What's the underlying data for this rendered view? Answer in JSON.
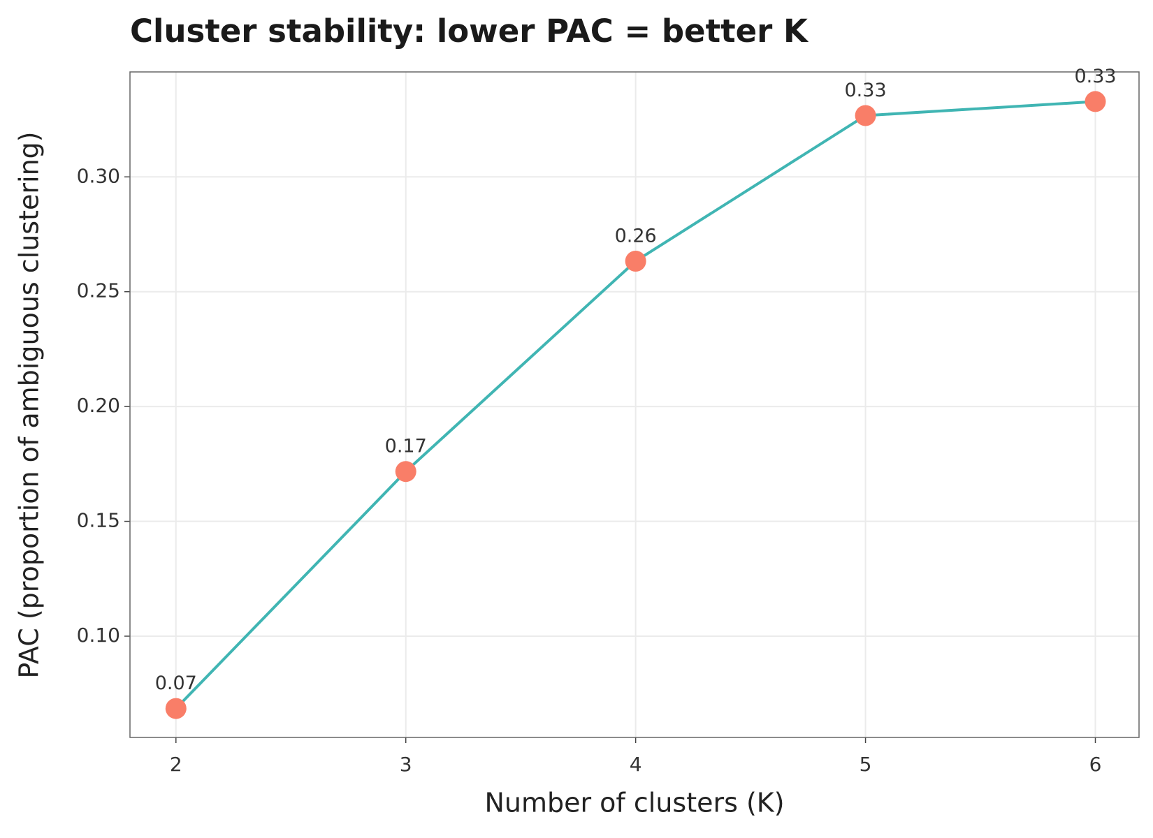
{
  "chart_data": {
    "type": "line",
    "title": "Cluster stability: lower PAC = better K",
    "x_label": "Number of clusters (K)",
    "y_label": "PAC (proportion of ambiguous clustering)",
    "x": [
      2,
      3,
      4,
      5,
      6
    ],
    "series": [
      {
        "values": [
          0.0685,
          0.1717,
          0.2633,
          0.3267,
          0.3328
        ],
        "value_labels": [
          "0.07",
          "0.17",
          "0.26",
          "0.33",
          "0.33"
        ],
        "color": "#40b5b3",
        "marker_color": "#f97e68"
      }
    ],
    "xlim": [
      1.8,
      6.19
    ],
    "ylim": [
      0.0559,
      0.3457
    ],
    "xticks": [
      2,
      3,
      4,
      5,
      6
    ],
    "yticks": [
      {
        "value": 0.1,
        "label": "0.10"
      },
      0.15,
      {
        "value": 0.2,
        "label": "0.20"
      },
      0.25,
      {
        "value": 0.3,
        "label": "0.30"
      }
    ],
    "grid": true
  }
}
